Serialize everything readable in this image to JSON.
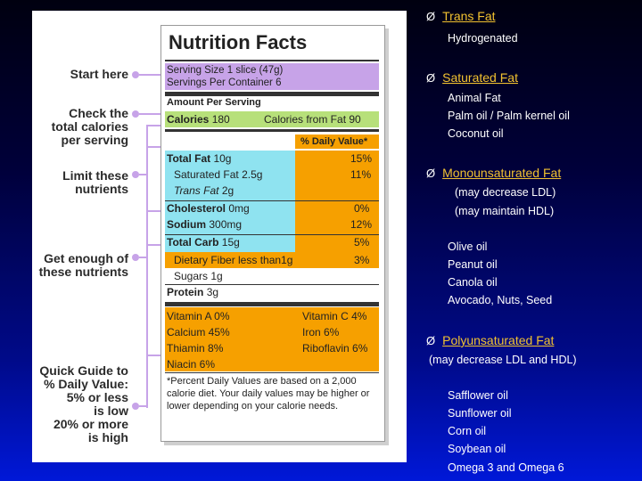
{
  "label": {
    "title": "Nutrition Facts",
    "serving_size": "Serving Size 1 slice (47g)",
    "servings_per_container": "Servings Per Container 6",
    "amount_per_serving": "Amount Per Serving",
    "calories": "Calories",
    "calories_value": "180",
    "calories_from_fat": "Calories from Fat 90",
    "daily_value_header": "% Daily Value*",
    "nutrients": [
      {
        "name": "Total Fat",
        "amount": "10g",
        "dv": "15%"
      },
      {
        "name": "Saturated Fat",
        "amount": "2.5g",
        "dv": "11%"
      },
      {
        "name": "Trans Fat",
        "amount": "2g",
        "dv": ""
      },
      {
        "name": "Cholesterol",
        "amount": "0mg",
        "dv": "0%"
      },
      {
        "name": "Sodium",
        "amount": "300mg",
        "dv": "12%"
      },
      {
        "name": "Total Carb",
        "amount": "15g",
        "dv": "5%"
      },
      {
        "name": "Dietary Fiber less than",
        "amount": "1g",
        "dv": "3%"
      },
      {
        "name": "Sugars",
        "amount": "1g",
        "dv": ""
      },
      {
        "name": "Protein",
        "amount": "3g",
        "dv": ""
      }
    ],
    "vitamins": [
      {
        "left": "Vitamin A 0%",
        "right": "Vitamin C 4%"
      },
      {
        "left": "Calcium 45%",
        "right": "Iron 6%"
      },
      {
        "left": "Thiamin 8%",
        "right": "Riboflavin 6%"
      },
      {
        "left": "Niacin 6%",
        "right": ""
      }
    ],
    "footnote": "*Percent Daily Values are based on a 2,000 calorie diet. Your daily values may be higher or lower depending on your calorie needs."
  },
  "guide": {
    "start_here": "Start here",
    "check_calories_1": "Check the",
    "check_calories_2": "total calories",
    "check_calories_3": "per serving",
    "limit_1": "Limit these",
    "limit_2": "nutrients",
    "get_enough_1": "Get enough of",
    "get_enough_2": "these nutrients",
    "quick_1": "Quick Guide to",
    "quick_2": "% Daily Value:",
    "quick_3": "5% or less",
    "quick_4": "is low",
    "quick_5": "20% or more",
    "quick_6": "is high"
  },
  "fats": {
    "arrow": "Ø",
    "trans": {
      "title": "Trans Fat",
      "items": [
        "Hydrogenated"
      ]
    },
    "saturated": {
      "title": "Saturated Fat",
      "items": [
        "Animal Fat",
        "Palm oil / Palm kernel oil",
        "Coconut oil"
      ]
    },
    "mono": {
      "title": "Monounsaturated Fat",
      "notes": [
        "(may decrease LDL)",
        "(may maintain HDL)"
      ],
      "items": [
        "Olive oil",
        "Peanut oil",
        "Canola oil",
        "Avocado, Nuts, Seed"
      ]
    },
    "poly": {
      "title": "Polyunsaturated Fat",
      "note": "(may decrease LDL and HDL)",
      "items": [
        "Safflower oil",
        "Sunflower oil",
        "Corn oil",
        "Soybean oil",
        "Omega 3 and Omega 6"
      ]
    }
  },
  "colors": {
    "purple": "#c7a3e8",
    "green": "#b7e07a",
    "orange": "#f6a000",
    "cyan": "#8fe3f0",
    "heading": "#f2c230"
  }
}
